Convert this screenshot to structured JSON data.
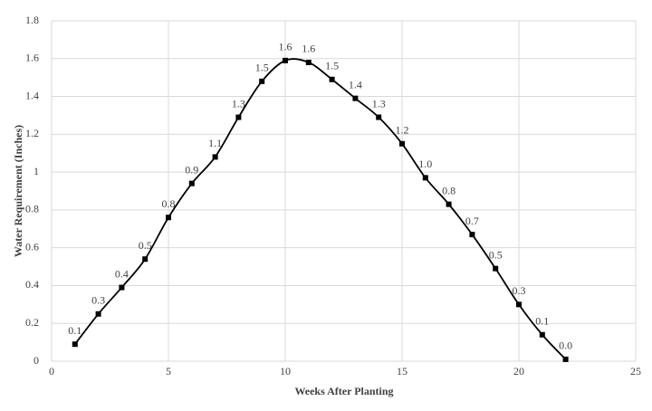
{
  "chart_data": {
    "type": "scatter",
    "x_label": "Weeks After Planting",
    "y_label": "Water Requirement (Inches)",
    "series": [
      {
        "name": "Water Requirement",
        "color": "#000000",
        "x": [
          1,
          2,
          3,
          4,
          5,
          6,
          7,
          8,
          9,
          10,
          11,
          12,
          13,
          14,
          15,
          16,
          17,
          18,
          19,
          20,
          21,
          22
        ],
        "values": [
          0.09,
          0.25,
          0.39,
          0.54,
          0.76,
          0.94,
          1.08,
          1.29,
          1.48,
          1.59,
          1.58,
          1.49,
          1.39,
          1.29,
          1.15,
          0.97,
          0.83,
          0.67,
          0.49,
          0.3,
          0.14,
          0.01
        ],
        "value_labels": [
          "0.1",
          "0.3",
          "0.4",
          "0.5",
          "0.8",
          "0.9",
          "1.1",
          "1.3",
          "1.5",
          "1.6",
          "1.6",
          "1.5",
          "1.4",
          "1.3",
          "1.2",
          "1.0",
          "0.8",
          "0.7",
          "0.5",
          "0.3",
          "0.1",
          "0.0"
        ]
      }
    ],
    "xlim": [
      0,
      25
    ],
    "xticks": [
      0,
      5,
      10,
      15,
      20,
      25
    ],
    "ylim": [
      0,
      1.8
    ],
    "yticks": [
      0,
      0.2,
      0.4,
      0.6,
      0.8,
      1,
      1.2,
      1.4,
      1.6,
      1.8
    ],
    "grid": true,
    "smooth": true
  }
}
